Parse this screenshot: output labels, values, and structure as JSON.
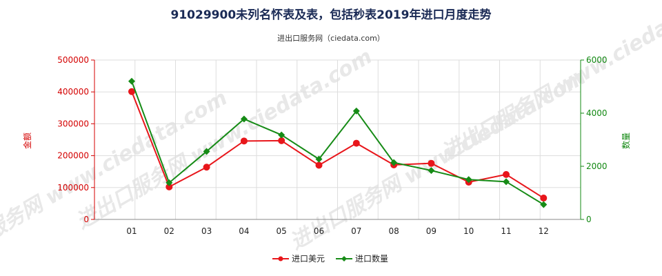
{
  "title": "91029900未列名怀表及表，包括秒表2019年进口月度走势",
  "subtitle": "进出口服务网（ciedata.com）",
  "watermark": "进出口服务网 www.ciedata.com",
  "colors": {
    "amount": "#e8161b",
    "quantity": "#168b16"
  },
  "chart_data": {
    "type": "line",
    "categories": [
      "01",
      "02",
      "03",
      "04",
      "05",
      "06",
      "07",
      "08",
      "09",
      "10",
      "11",
      "12"
    ],
    "series": [
      {
        "name": "进口美元",
        "axis": "left",
        "values": [
          401000,
          102000,
          164000,
          246000,
          247000,
          170000,
          239000,
          171000,
          176000,
          117000,
          141000,
          67000
        ]
      },
      {
        "name": "进口数量",
        "axis": "right",
        "values": [
          5200,
          1380,
          2560,
          3780,
          3180,
          2270,
          4080,
          2140,
          1840,
          1500,
          1420,
          560
        ]
      }
    ],
    "y_left": {
      "label": "金额",
      "min": 0,
      "max": 500000,
      "ticks": [
        "0",
        "100000",
        "200000",
        "300000",
        "400000",
        "500000"
      ]
    },
    "y_right": {
      "label": "数量",
      "min": 0,
      "max": 6000,
      "ticks": [
        "0",
        "2000",
        "4000",
        "6000"
      ]
    },
    "grid": true,
    "legend_position": "bottom-center"
  }
}
